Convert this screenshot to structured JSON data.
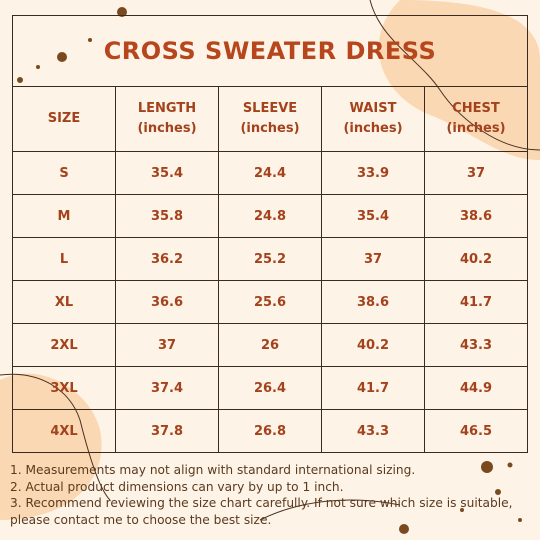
{
  "title": "CROSS SWEATER DRESS",
  "table": {
    "header": [
      {
        "name": "SIZE"
      },
      {
        "name": "LENGTH",
        "unit": "(inches)"
      },
      {
        "name": "SLEEVE",
        "unit": "(inches)"
      },
      {
        "name": "WAIST",
        "unit": "(inches)"
      },
      {
        "name": "CHEST",
        "unit": "(inches)"
      }
    ],
    "rows": [
      [
        "S",
        35.4,
        24.4,
        33.9,
        37
      ],
      [
        "M",
        35.8,
        24.8,
        35.4,
        38.6
      ],
      [
        "L",
        36.2,
        25.2,
        37,
        40.2
      ],
      [
        "XL",
        36.6,
        25.6,
        38.6,
        41.7
      ],
      [
        "2XL",
        37,
        26,
        40.2,
        43.3
      ],
      [
        "3XL",
        37.4,
        26.4,
        41.7,
        44.9
      ],
      [
        "4XL",
        37.8,
        26.8,
        43.3,
        46.5
      ]
    ]
  },
  "notes": [
    "1. Measurements may not align with standard international sizing.",
    "2. Actual product dimensions can vary by up to 1 inch.",
    "3. Recommend reviewing the size chart carefully. If not sure which size is suitable, please contact me to choose the best size."
  ]
}
